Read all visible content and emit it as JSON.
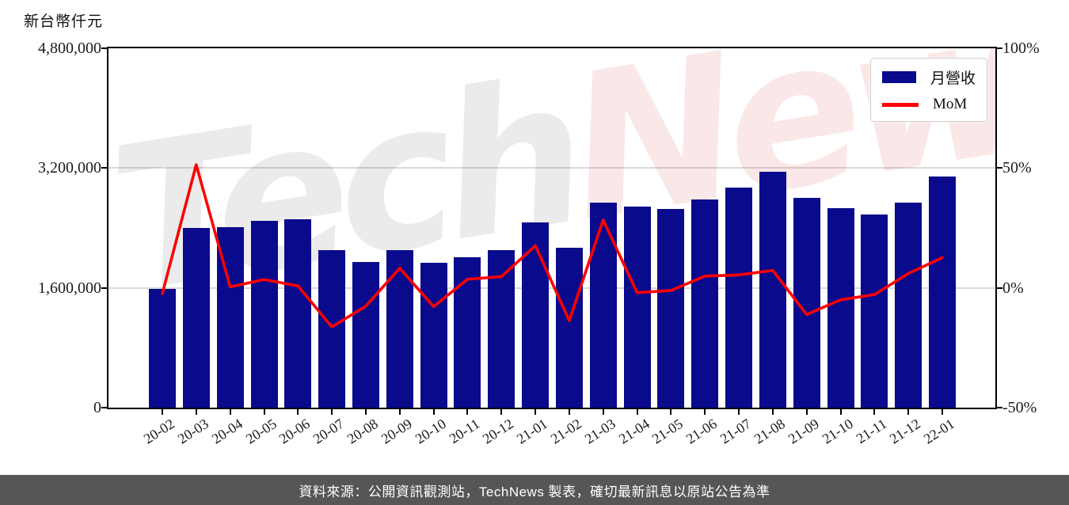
{
  "title": "新台幣仟元",
  "legend": {
    "bar_label": "月營收",
    "line_label": "MoM"
  },
  "watermark": {
    "first": "Tech",
    "second": "News"
  },
  "footer": {
    "text": "資料來源：公開資訊觀測站，TechNews 製表，確切最新訊息以原站公告為準"
  },
  "colors": {
    "bar": "#0a0a8c",
    "line": "#ff0000",
    "grid": "#d9d9d9",
    "axis": "#000000",
    "footer_bg": "#565656"
  },
  "left_axis": {
    "unit_label": "新台幣仟元",
    "ticks": [
      "0",
      "1,600,000",
      "3,200,000",
      "4,800,000"
    ],
    "min": 0,
    "max": 4800000
  },
  "right_axis": {
    "ticks": [
      "-50%",
      "0%",
      "50%",
      "100%"
    ],
    "min": -50,
    "max": 100
  },
  "chart_data": {
    "type": "bar",
    "subtype": "bar+line dual-axis combo",
    "title": "新台幣仟元",
    "categories": [
      "20-02",
      "20-03",
      "20-04",
      "20-05",
      "20-06",
      "20-07",
      "20-08",
      "20-09",
      "20-10",
      "20-11",
      "20-12",
      "21-01",
      "21-02",
      "21-03",
      "21-04",
      "21-05",
      "21-06",
      "21-07",
      "21-08",
      "21-09",
      "21-10",
      "21-11",
      "21-12",
      "22-01"
    ],
    "series": [
      {
        "name": "月營收",
        "type": "bar",
        "axis": "left",
        "unit": "新台幣仟元",
        "color": "#0a0a8c",
        "values": [
          1585000,
          2400000,
          2410000,
          2495000,
          2515000,
          2105000,
          1945000,
          2105000,
          1940000,
          2010000,
          2105000,
          2475000,
          2135000,
          2740000,
          2685000,
          2655000,
          2785000,
          2935000,
          3150000,
          2800000,
          2660000,
          2585000,
          2740000,
          3085000
        ]
      },
      {
        "name": "MoM",
        "type": "line",
        "axis": "right",
        "unit": "%",
        "color": "#ff0000",
        "values": [
          -2.4,
          51.4,
          0.4,
          3.5,
          0.8,
          -16.3,
          -7.6,
          8.2,
          -7.8,
          3.6,
          4.7,
          17.6,
          -13.7,
          28.3,
          -2.0,
          -1.1,
          4.9,
          5.4,
          7.3,
          -11.1,
          -5.0,
          -2.8,
          6.0,
          12.6
        ]
      }
    ],
    "left_ylim": [
      0,
      4800000
    ],
    "right_ylim": [
      -50,
      100
    ],
    "grid": "horizontal gridlines at left-axis ticks",
    "legend_position": "top-right"
  }
}
